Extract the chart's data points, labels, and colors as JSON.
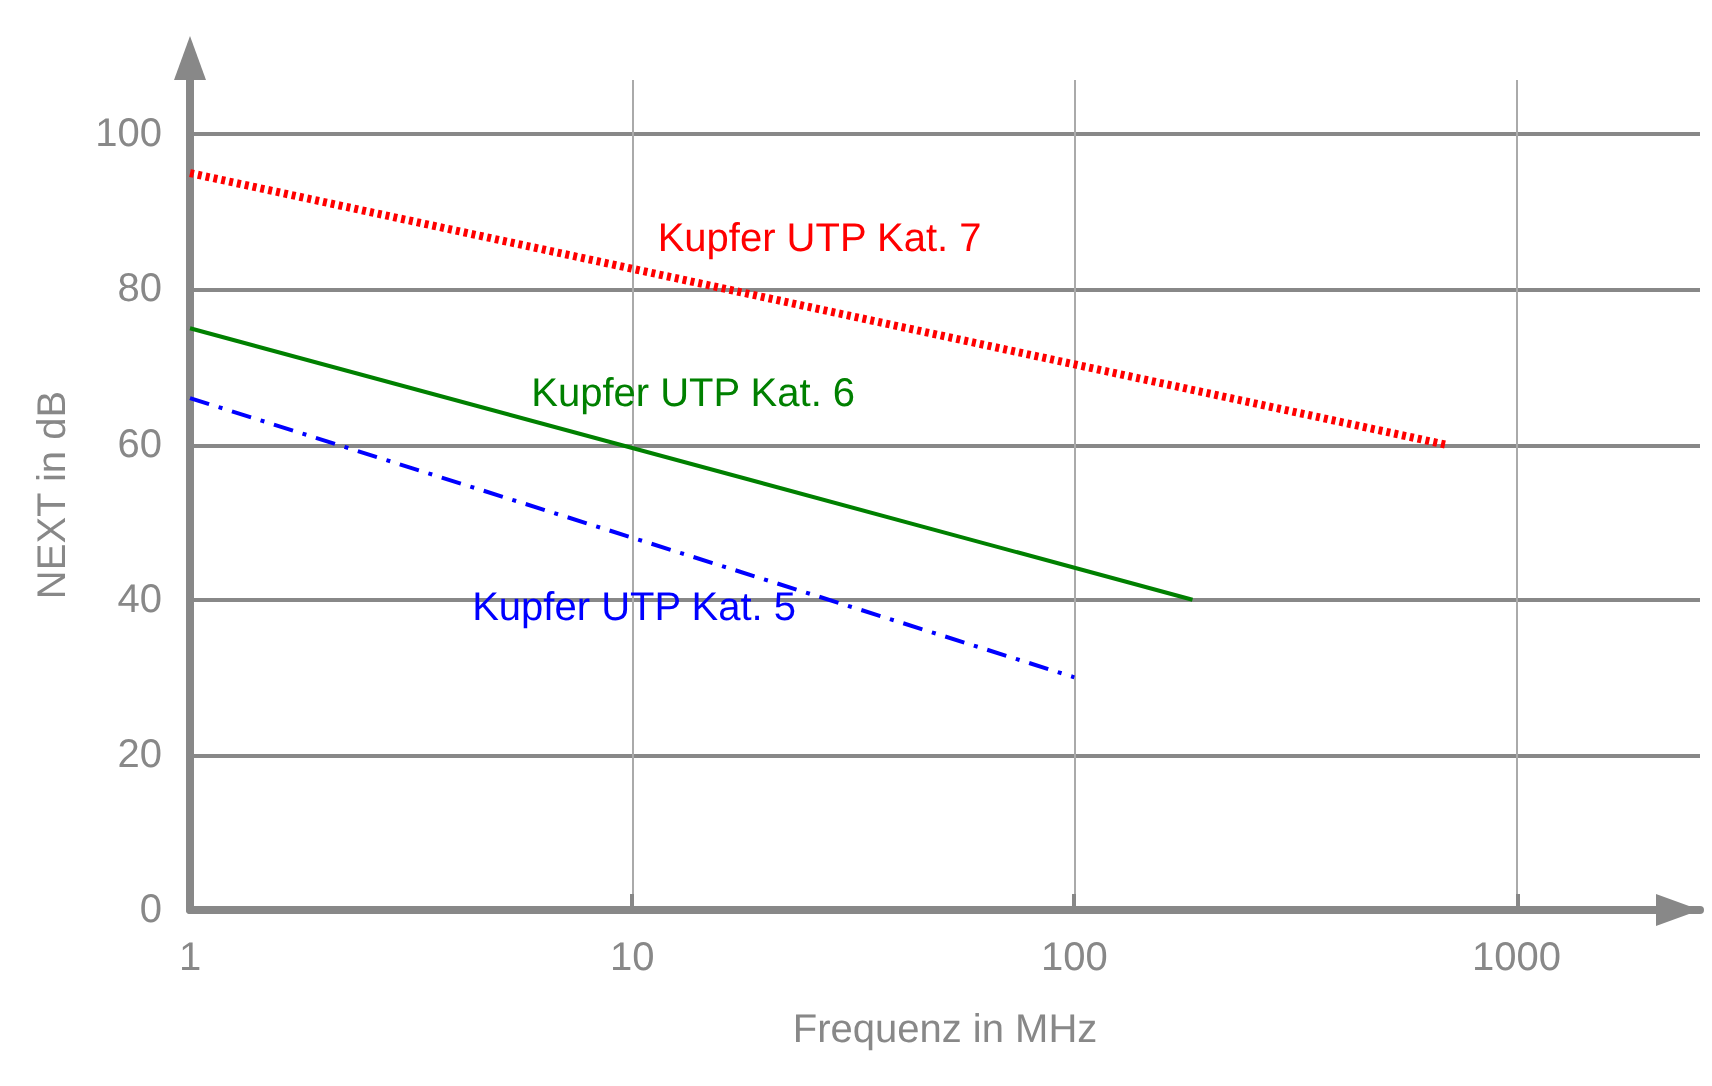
{
  "chart_data": {
    "type": "line",
    "xlabel": "Frequenz in MHz",
    "ylabel": "NEXT in dB",
    "log": "x",
    "xlim": [
      1,
      2600
    ],
    "xticks": [
      1,
      10,
      100,
      1000
    ],
    "ylim": [
      0,
      107
    ],
    "yticks": [
      0,
      20,
      40,
      60,
      80,
      100
    ],
    "grid": true,
    "legend": false,
    "marker": "none",
    "series": [
      {
        "name": "Kupfer UTP Kat. 7",
        "color": "#ff0000",
        "line_style": "dotted",
        "x": [
          1,
          690
        ],
        "values": [
          95,
          60
        ]
      },
      {
        "name": "Kupfer UTP Kat. 6",
        "color": "#008000",
        "line_style": "solid",
        "x": [
          1,
          185
        ],
        "values": [
          75,
          40
        ]
      },
      {
        "name": "Kupfer UTP Kat. 5",
        "color": "#0000ff",
        "line_style": "dashed",
        "x": [
          1,
          100
        ],
        "values": [
          66,
          30
        ]
      }
    ]
  }
}
